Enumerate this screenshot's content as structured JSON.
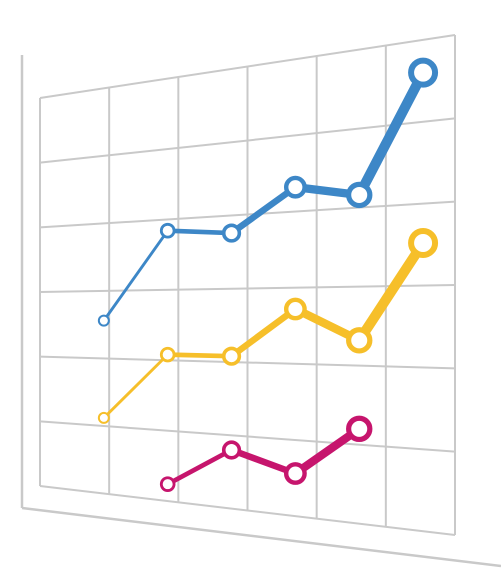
{
  "chart_data": {
    "type": "line",
    "title": "",
    "xlabel": "",
    "ylabel": "",
    "grid": true,
    "legend": "none",
    "x": [
      1,
      2,
      3,
      4,
      5,
      6
    ],
    "xlim": [
      0,
      6.5
    ],
    "ylim": [
      0,
      7.5
    ],
    "series": [
      {
        "color": "#3d87c7",
        "values": [
          3.2,
          4.8,
          4.7,
          5.4,
          5.2,
          7.0
        ]
      },
      {
        "color": "#f6bf2a",
        "values": [
          1.4,
          2.6,
          2.6,
          3.4,
          2.9,
          4.4
        ]
      },
      {
        "color": "#c6156d",
        "values": [
          null,
          0.3,
          1.0,
          0.7,
          1.5,
          null
        ]
      }
    ]
  }
}
